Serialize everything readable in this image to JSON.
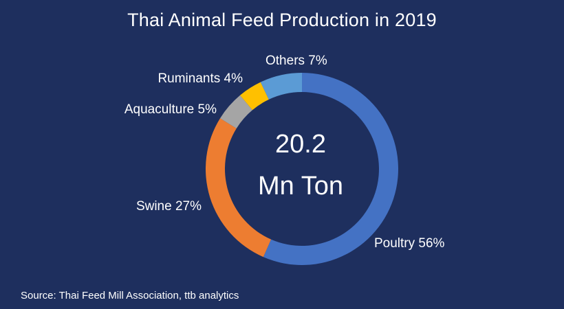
{
  "chart_data": {
    "type": "pie",
    "title": "Thai Animal Feed Production in 2019",
    "center_text": [
      "20.2",
      "Mn Ton"
    ],
    "slices": [
      {
        "label": "Poultry 56%",
        "value": 56,
        "color": "#4472c4"
      },
      {
        "label": "Swine 27%",
        "value": 27,
        "color": "#ed7d31"
      },
      {
        "label": "Aquaculture 5%",
        "value": 5,
        "color": "#a5a5a5"
      },
      {
        "label": "Ruminants 4%",
        "value": 4,
        "color": "#ffc000"
      },
      {
        "label": "Others 7%",
        "value": 7,
        "color": "#5b9bd5"
      }
    ],
    "source": "Source: Thai Feed Mill Association, ttb analytics"
  },
  "colors": {
    "background": "#1e2f5e",
    "text": "#ffffff"
  }
}
